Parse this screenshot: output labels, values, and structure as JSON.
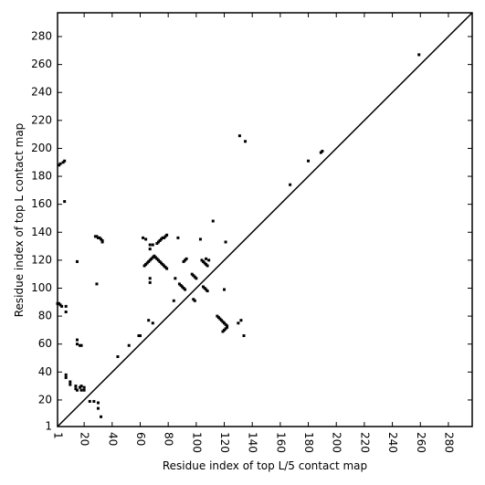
{
  "chart_data": {
    "type": "scatter",
    "xlabel": "Residue index of top L/5 contact map",
    "ylabel": "Residue index of top L contact map",
    "xlim": [
      1,
      297
    ],
    "ylim": [
      1,
      297
    ],
    "xticks": [
      1,
      20,
      40,
      60,
      80,
      100,
      120,
      140,
      160,
      180,
      200,
      220,
      240,
      260,
      280
    ],
    "yticks": [
      1,
      20,
      40,
      60,
      80,
      100,
      120,
      140,
      160,
      180,
      200,
      220,
      240,
      260,
      280
    ],
    "diagonal": true,
    "series": [
      {
        "color": "#000000",
        "x": [
          1,
          2,
          3,
          4,
          2,
          3,
          5,
          6,
          6,
          7,
          7,
          7,
          7,
          10,
          10,
          14,
          14,
          15,
          17,
          18,
          18,
          20,
          20,
          24,
          27,
          30,
          30,
          32,
          15,
          17,
          18,
          15,
          15,
          28,
          29,
          30,
          31,
          32,
          33,
          33,
          29,
          44,
          52,
          59,
          60,
          62,
          64,
          63,
          64,
          65,
          66,
          67,
          68,
          69,
          70,
          71,
          72,
          73,
          74,
          75,
          76,
          77,
          78,
          79,
          67,
          67,
          69,
          72,
          73,
          74,
          75,
          76,
          77,
          78,
          79,
          67,
          67,
          66,
          69,
          84,
          85,
          87,
          88,
          89,
          90,
          91,
          92,
          91,
          92,
          93,
          97,
          98,
          99,
          100,
          98,
          99,
          103,
          104,
          105,
          106,
          107,
          108,
          105,
          106,
          107,
          108,
          107,
          109,
          112,
          115,
          116,
          117,
          118,
          119,
          120,
          121,
          122,
          119,
          120,
          121,
          122,
          120,
          121,
          130,
          132,
          134,
          131,
          135,
          167,
          180,
          189,
          190,
          259
        ],
        "values": [
          89,
          89,
          88,
          87,
          188,
          189,
          190,
          191,
          162,
          87,
          83,
          38,
          36,
          33,
          31,
          30,
          28,
          27,
          29,
          27,
          30,
          29,
          27,
          19,
          19,
          18,
          14,
          8,
          60,
          59,
          59,
          119,
          63,
          137,
          137,
          136,
          136,
          135,
          134,
          133,
          103,
          51,
          59,
          66,
          66,
          136,
          135,
          116,
          117,
          118,
          119,
          120,
          121,
          122,
          123,
          122,
          121,
          120,
          119,
          118,
          117,
          116,
          115,
          114,
          131,
          128,
          131,
          132,
          133,
          134,
          135,
          136,
          136,
          137,
          138,
          107,
          104,
          77,
          75,
          91,
          107,
          136,
          103,
          102,
          101,
          100,
          99,
          119,
          120,
          121,
          110,
          109,
          108,
          107,
          92,
          91,
          135,
          120,
          119,
          118,
          117,
          116,
          101,
          100,
          99,
          98,
          121,
          120,
          148,
          80,
          79,
          78,
          77,
          76,
          75,
          74,
          73,
          69,
          70,
          71,
          72,
          99,
          133,
          75,
          77,
          66,
          209,
          205,
          174,
          191,
          197,
          198,
          267
        ]
      }
    ]
  }
}
